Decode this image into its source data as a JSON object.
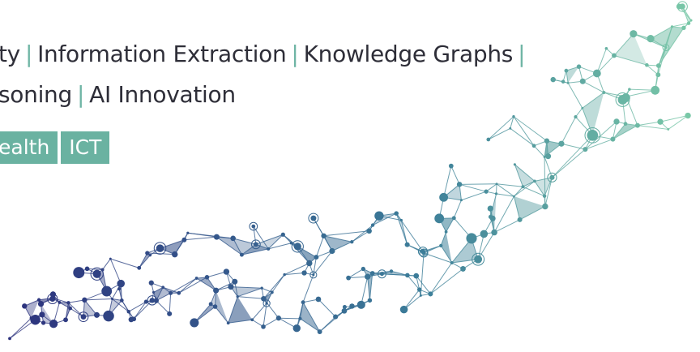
{
  "headline": {
    "line1": {
      "start": "ty",
      "items": [
        "Information Extraction",
        "Knowledge Graphs"
      ],
      "separator": "|"
    },
    "line2": {
      "start": "soning",
      "items": [
        "AI Innovation"
      ],
      "separator": "|"
    }
  },
  "tags": [
    {
      "label": "ealth"
    },
    {
      "label": "ICT"
    }
  ],
  "colors": {
    "text": "#2e2e38",
    "separator": "#6fb5a5",
    "tag_background": "#6ab2a1",
    "network_start": "#2c2f7c",
    "network_mid": "#3c7d99",
    "network_end": "#7ccba8"
  },
  "graphic": {
    "name": "network-wave-illustration"
  }
}
